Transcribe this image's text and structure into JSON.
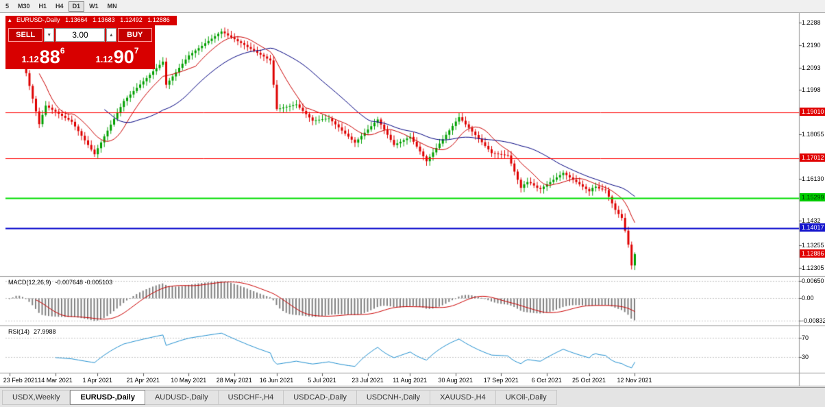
{
  "toolbar": {
    "timeframes": [
      {
        "label": "5",
        "active": false
      },
      {
        "label": "M30",
        "active": false
      },
      {
        "label": "H1",
        "active": false
      },
      {
        "label": "H4",
        "active": false
      },
      {
        "label": "D1",
        "active": true
      },
      {
        "label": "W1",
        "active": false
      },
      {
        "label": "MN",
        "active": false
      }
    ]
  },
  "trade_panel": {
    "collapse_arrow": "▴",
    "header": {
      "symbol": "EURUSD-,Daily",
      "open": "1.13664",
      "high": "1.13683",
      "low": "1.12492",
      "close": "1.12886"
    },
    "sell_label": "SELL",
    "buy_label": "BUY",
    "volume": "3.00",
    "spin_down": "▼",
    "spin_up": "▲",
    "sell_price": {
      "prefix": "1.12",
      "big": "88",
      "sup": "6"
    },
    "buy_price": {
      "prefix": "1.12",
      "big": "90",
      "sup": "7"
    }
  },
  "chart_data": {
    "type": "candlestick",
    "symbol": "EURUSD-,Daily",
    "ohlc_current": {
      "open": 1.13664,
      "high": 1.13683,
      "low": 1.12492,
      "close": 1.12886
    },
    "open_first": 1.212,
    "closes": [
      1.215,
      1.2193,
      1.2235,
      1.218,
      1.2125,
      1.207,
      1.2015,
      1.196,
      1.1905,
      1.185,
      1.189,
      1.193,
      1.1921,
      1.1912,
      1.1904,
      1.1895,
      1.1886,
      1.1877,
      1.1869,
      1.186,
      1.184,
      1.182,
      1.18,
      1.178,
      1.176,
      1.174,
      1.172,
      1.1746,
      1.1771,
      1.1797,
      1.1822,
      1.1848,
      1.1873,
      1.1899,
      1.1924,
      1.195,
      1.1964,
      1.1978,
      1.1993,
      1.2007,
      1.2021,
      1.2035,
      1.2049,
      1.2063,
      1.2078,
      1.2092,
      1.2106,
      1.212,
      1.202,
      1.2038,
      1.2056,
      1.2074,
      1.2093,
      1.2111,
      1.2129,
      1.2147,
      1.2157,
      1.2168,
      1.2178,
      1.2188,
      1.2199,
      1.2209,
      1.2219,
      1.223,
      1.224,
      1.225,
      1.2242,
      1.2233,
      1.2225,
      1.2217,
      1.2208,
      1.22,
      1.2192,
      1.2183,
      1.2175,
      1.2167,
      1.2158,
      1.215,
      1.2142,
      1.2133,
      1.2125,
      1.202,
      1.1915,
      1.1918,
      1.1922,
      1.1925,
      1.1928,
      1.1932,
      1.1935,
      1.1921,
      1.1907,
      1.1893,
      1.1879,
      1.1865,
      1.1867,
      1.1869,
      1.1871,
      1.1873,
      1.1875,
      1.1862,
      1.1849,
      1.1836,
      1.1822,
      1.1809,
      1.1796,
      1.1783,
      1.177,
      1.1784,
      1.1799,
      1.1813,
      1.1827,
      1.1841,
      1.1856,
      1.187,
      1.1848,
      1.1826,
      1.1804,
      1.1782,
      1.176,
      1.1767,
      1.1774,
      1.1781,
      1.1788,
      1.1795,
      1.1774,
      1.1753,
      1.1732,
      1.1711,
      1.169,
      1.1709,
      1.1728,
      1.1747,
      1.1766,
      1.1785,
      1.1804,
      1.1823,
      1.1842,
      1.1861,
      1.188,
      1.1865,
      1.1849,
      1.1834,
      1.1818,
      1.1803,
      1.1787,
      1.1772,
      1.1756,
      1.1741,
      1.1725,
      1.1723,
      1.1721,
      1.1719,
      1.1717,
      1.1715,
      1.168,
      1.1645,
      1.161,
      1.1575,
      1.159,
      1.16,
      1.1595,
      1.1585,
      1.1575,
      1.157,
      1.158,
      1.159,
      1.16,
      1.161,
      1.162,
      1.163,
      1.164,
      1.163,
      1.162,
      1.161,
      1.16,
      1.159,
      1.158,
      1.157,
      1.156,
      1.1575,
      1.158,
      1.1572,
      1.1568,
      1.1565,
      1.1537,
      1.1508,
      1.148,
      1.1462,
      1.1445,
      1.139,
      1.133,
      1.124,
      1.1289
    ],
    "moving_averages": [
      {
        "period": 10,
        "color": "#cc0000"
      },
      {
        "period": 30,
        "color": "#000080"
      }
    ],
    "colors": {
      "up": "#00a000",
      "down": "#de0000"
    },
    "y_ticks": [
      "1.2288",
      "1.2190",
      "1.2093",
      "1.1998",
      "1.18055",
      "1.16130",
      "1.1432",
      "1.13255",
      "1.12305"
    ],
    "hlines": [
      {
        "price": 1.1901,
        "label": "1.19010",
        "color": "#ff0000",
        "label_bg": "#e00000",
        "label_fg": "#ffffff",
        "width": 1
      },
      {
        "price": 1.17012,
        "label": "1.17012",
        "color": "#ff0000",
        "label_bg": "#e00000",
        "label_fg": "#ffffff",
        "width": 1
      },
      {
        "price": 1.15299,
        "label": "1.15299",
        "color": "#00dd00",
        "label_bg": "#00cc00",
        "label_fg": "#003300",
        "width": 2
      },
      {
        "price": 1.14017,
        "label": "1.14017",
        "color": "#0000cc",
        "label_bg": "#1414cc",
        "label_fg": "#ffffff",
        "width": 2
      }
    ],
    "current": {
      "price": 1.12886,
      "label": "1.12886",
      "label_bg": "#e00000",
      "label_fg": "#ffffff"
    },
    "x_labels": [
      "23 Feb 2021",
      "14 Mar 2021",
      "1 Apr 2021",
      "21 Apr 2021",
      "10 May 2021",
      "28 May 2021",
      "16 Jun 2021",
      "5 Jul 2021",
      "23 Jul 2021",
      "11 Aug 2021",
      "30 Aug 2021",
      "17 Sep 2021",
      "6 Oct 2021",
      "25 Oct 2021",
      "12 Nov 2021"
    ],
    "macd": {
      "label": "MACD(12,26,9)",
      "values": "-0.007648 -0.005103",
      "params": {
        "fast": 12,
        "slow": 26,
        "signal": 9
      },
      "axis": [
        {
          "text": "0.00650",
          "value": 0.0065
        },
        {
          "text": "0.00",
          "value": 0.0
        },
        {
          "text": "-0.00832",
          "value": -0.00832
        }
      ],
      "hist_color": "#808080",
      "signal_color": "#cc0000"
    },
    "rsi": {
      "label": "RSI(14)",
      "value": "27.9988",
      "period": 14,
      "levels": [
        {
          "text": "70",
          "value": 70
        },
        {
          "text": "30",
          "value": 30
        }
      ],
      "line_color": "#1f8fd0"
    }
  },
  "tabs": {
    "items": [
      {
        "label": "USDX,Weekly",
        "active": false
      },
      {
        "label": "EURUSD-,Daily",
        "active": true
      },
      {
        "label": "AUDUSD-,Daily",
        "active": false
      },
      {
        "label": "USDCHF-,H4",
        "active": false
      },
      {
        "label": "USDCAD-,Daily",
        "active": false
      },
      {
        "label": "USDCNH-,Daily",
        "active": false
      },
      {
        "label": "XAUUSD-,H4",
        "active": false
      },
      {
        "label": "UKOil-,Daily",
        "active": false
      }
    ]
  }
}
